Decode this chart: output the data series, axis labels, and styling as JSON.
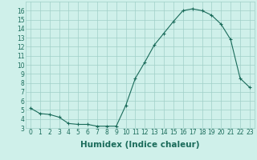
{
  "x": [
    0,
    1,
    2,
    3,
    4,
    5,
    6,
    7,
    8,
    9,
    10,
    11,
    12,
    13,
    14,
    15,
    16,
    17,
    18,
    19,
    20,
    21,
    22,
    23
  ],
  "y": [
    5.2,
    4.6,
    4.5,
    4.2,
    3.5,
    3.4,
    3.4,
    3.2,
    3.2,
    3.2,
    5.5,
    8.5,
    10.3,
    12.2,
    13.5,
    14.8,
    16.0,
    16.2,
    16.0,
    15.5,
    14.5,
    12.8,
    8.5,
    7.5
  ],
  "xlabel": "Humidex (Indice chaleur)",
  "xlim": [
    -0.5,
    23.5
  ],
  "ylim": [
    3,
    17
  ],
  "yticks": [
    3,
    4,
    5,
    6,
    7,
    8,
    9,
    10,
    11,
    12,
    13,
    14,
    15,
    16
  ],
  "xticks": [
    0,
    1,
    2,
    3,
    4,
    5,
    6,
    7,
    8,
    9,
    10,
    11,
    12,
    13,
    14,
    15,
    16,
    17,
    18,
    19,
    20,
    21,
    22,
    23
  ],
  "line_color": "#1a6b5a",
  "marker": "+",
  "bg_color": "#cff0ea",
  "grid_color": "#a0cfc8",
  "tick_color": "#1a6b5a",
  "xlabel_fontsize": 7.5,
  "tick_fontsize": 5.5
}
